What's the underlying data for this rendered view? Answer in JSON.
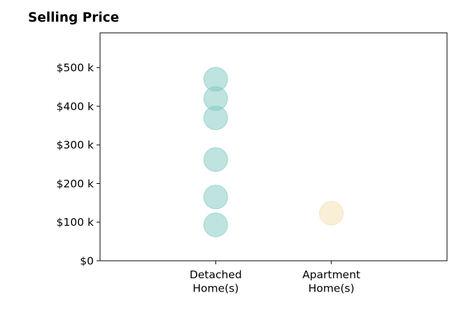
{
  "chart_data": {
    "type": "scatter",
    "title": "Selling Price",
    "xlabel": "",
    "ylabel": "",
    "categories": [
      "Detached\nHome(s)",
      "Apartment\nHome(s)"
    ],
    "xlim": [
      -1,
      2
    ],
    "ylim": [
      0,
      590
    ],
    "yticks": [
      0,
      100,
      200,
      300,
      400,
      500
    ],
    "ytick_labels": [
      "$0",
      "$100 k",
      "$200 k",
      "$300 k",
      "$400 k",
      "$500 k"
    ],
    "grid": false,
    "series": [
      {
        "category_index": 0,
        "color": "#7fc8c0",
        "values": [
          93,
          165,
          262,
          370,
          420,
          470
        ]
      },
      {
        "category_index": 1,
        "color": "#f3dfb0",
        "values": [
          123
        ]
      }
    ]
  }
}
